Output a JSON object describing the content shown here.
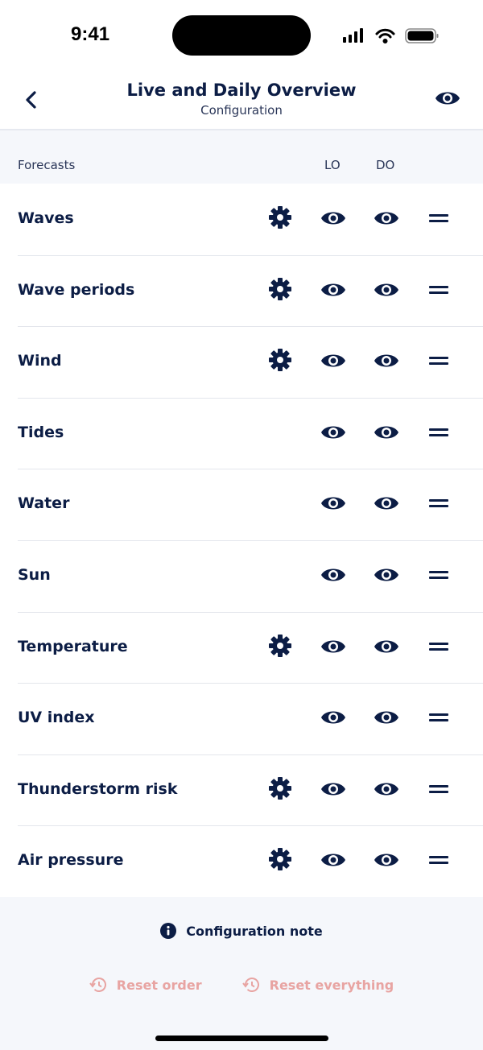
{
  "status_bar": {
    "time": "9:41"
  },
  "header": {
    "title": "Live and Daily Overview",
    "subtitle": "Configuration"
  },
  "columns": {
    "forecasts": "Forecasts",
    "lo": "LO",
    "do": "DO"
  },
  "rows": [
    {
      "label": "Waves",
      "settings": true
    },
    {
      "label": "Wave periods",
      "settings": true
    },
    {
      "label": "Wind",
      "settings": true
    },
    {
      "label": "Tides",
      "settings": false
    },
    {
      "label": "Water",
      "settings": false
    },
    {
      "label": "Sun",
      "settings": false
    },
    {
      "label": "Temperature",
      "settings": true
    },
    {
      "label": "UV index",
      "settings": false
    },
    {
      "label": "Thunderstorm risk",
      "settings": true
    },
    {
      "label": "Air pressure",
      "settings": true
    }
  ],
  "footer": {
    "note": "Configuration note",
    "reset_order": "Reset order",
    "reset_everything": "Reset everything"
  },
  "colors": {
    "primary": "#0c1d45",
    "reset": "#e8a4a2",
    "background": "#f5f7fb"
  }
}
